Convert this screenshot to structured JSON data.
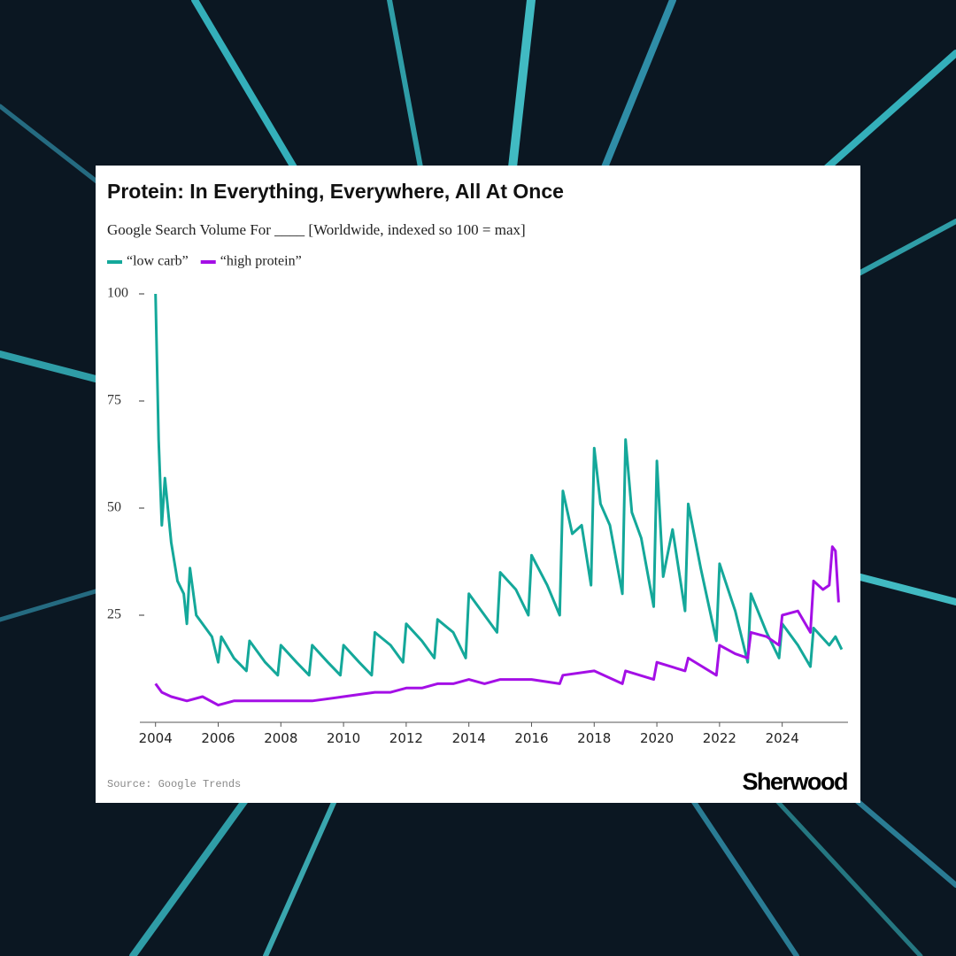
{
  "chart_data": {
    "type": "line",
    "title": "Protein: In Everything, Everywhere, All At Once",
    "subtitle": "Google Search Volume For ____ [Worldwide, indexed so 100 = max]",
    "source": "Source: Google Trends",
    "brand": "Sherwood",
    "xlim": [
      2003.5,
      2026.1
    ],
    "xticks": [
      2004,
      2006,
      2008,
      2010,
      2012,
      2014,
      2016,
      2018,
      2020,
      2022,
      2024
    ],
    "ylim": [
      0,
      100
    ],
    "yticks": [
      25,
      50,
      75,
      100
    ],
    "series": [
      {
        "name": "“low carb”",
        "color": "#14a89a",
        "x": [
          2004.0,
          2004.1,
          2004.2,
          2004.3,
          2004.5,
          2004.7,
          2004.9,
          2005.0,
          2005.1,
          2005.3,
          2005.6,
          2005.8,
          2006.0,
          2006.1,
          2006.5,
          2006.9,
          2007.0,
          2007.5,
          2007.9,
          2008.0,
          2008.5,
          2008.9,
          2009.0,
          2009.5,
          2009.9,
          2010.0,
          2010.5,
          2010.9,
          2011.0,
          2011.5,
          2011.9,
          2012.0,
          2012.5,
          2012.9,
          2013.0,
          2013.5,
          2013.9,
          2014.0,
          2014.5,
          2014.9,
          2015.0,
          2015.5,
          2015.9,
          2016.0,
          2016.5,
          2016.9,
          2017.0,
          2017.3,
          2017.6,
          2017.9,
          2018.0,
          2018.2,
          2018.5,
          2018.9,
          2019.0,
          2019.2,
          2019.5,
          2019.9,
          2020.0,
          2020.2,
          2020.5,
          2020.9,
          2021.0,
          2021.4,
          2021.9,
          2022.0,
          2022.5,
          2022.9,
          2023.0,
          2023.5,
          2023.9,
          2024.0,
          2024.5,
          2024.9,
          2025.0,
          2025.5,
          2025.7,
          2025.9
        ],
        "values": [
          100,
          66,
          46,
          57,
          42,
          33,
          30,
          23,
          36,
          25,
          22,
          20,
          14,
          20,
          15,
          12,
          19,
          14,
          11,
          18,
          14,
          11,
          18,
          14,
          11,
          18,
          14,
          11,
          21,
          18,
          14,
          23,
          19,
          15,
          24,
          21,
          15,
          30,
          25,
          21,
          35,
          31,
          25,
          39,
          32,
          25,
          54,
          44,
          46,
          32,
          64,
          51,
          46,
          30,
          66,
          49,
          43,
          27,
          61,
          34,
          45,
          26,
          51,
          36,
          19,
          37,
          26,
          14,
          30,
          21,
          15,
          23,
          18,
          13,
          22,
          18,
          20,
          17
        ]
      },
      {
        "name": "“high protein”",
        "color": "#a40fe6",
        "x": [
          2004.0,
          2004.2,
          2004.5,
          2005.0,
          2005.5,
          2006.0,
          2006.5,
          2007.0,
          2008.0,
          2009.0,
          2010.0,
          2011.0,
          2011.5,
          2012.0,
          2012.5,
          2013.0,
          2013.5,
          2014.0,
          2014.5,
          2015.0,
          2016.0,
          2016.9,
          2017.0,
          2018.0,
          2018.9,
          2019.0,
          2019.9,
          2020.0,
          2020.9,
          2021.0,
          2021.9,
          2022.0,
          2022.5,
          2022.9,
          2023.0,
          2023.5,
          2023.9,
          2024.0,
          2024.5,
          2024.9,
          2025.0,
          2025.3,
          2025.5,
          2025.6,
          2025.7,
          2025.8
        ],
        "values": [
          9,
          7,
          6,
          5,
          6,
          4,
          5,
          5,
          5,
          5,
          6,
          7,
          7,
          8,
          8,
          9,
          9,
          10,
          9,
          10,
          10,
          9,
          11,
          12,
          9,
          12,
          10,
          14,
          12,
          15,
          11,
          18,
          16,
          15,
          21,
          20,
          18,
          25,
          26,
          21,
          33,
          31,
          32,
          41,
          40,
          28
        ]
      }
    ]
  }
}
